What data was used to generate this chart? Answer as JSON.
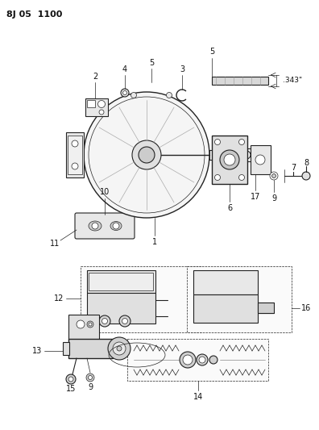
{
  "title": "8J05  1100",
  "bg_color": "#ffffff",
  "line_color": "#222222",
  "label_color": "#111111",
  "fig_width": 3.96,
  "fig_height": 5.33,
  "dpi": 100
}
